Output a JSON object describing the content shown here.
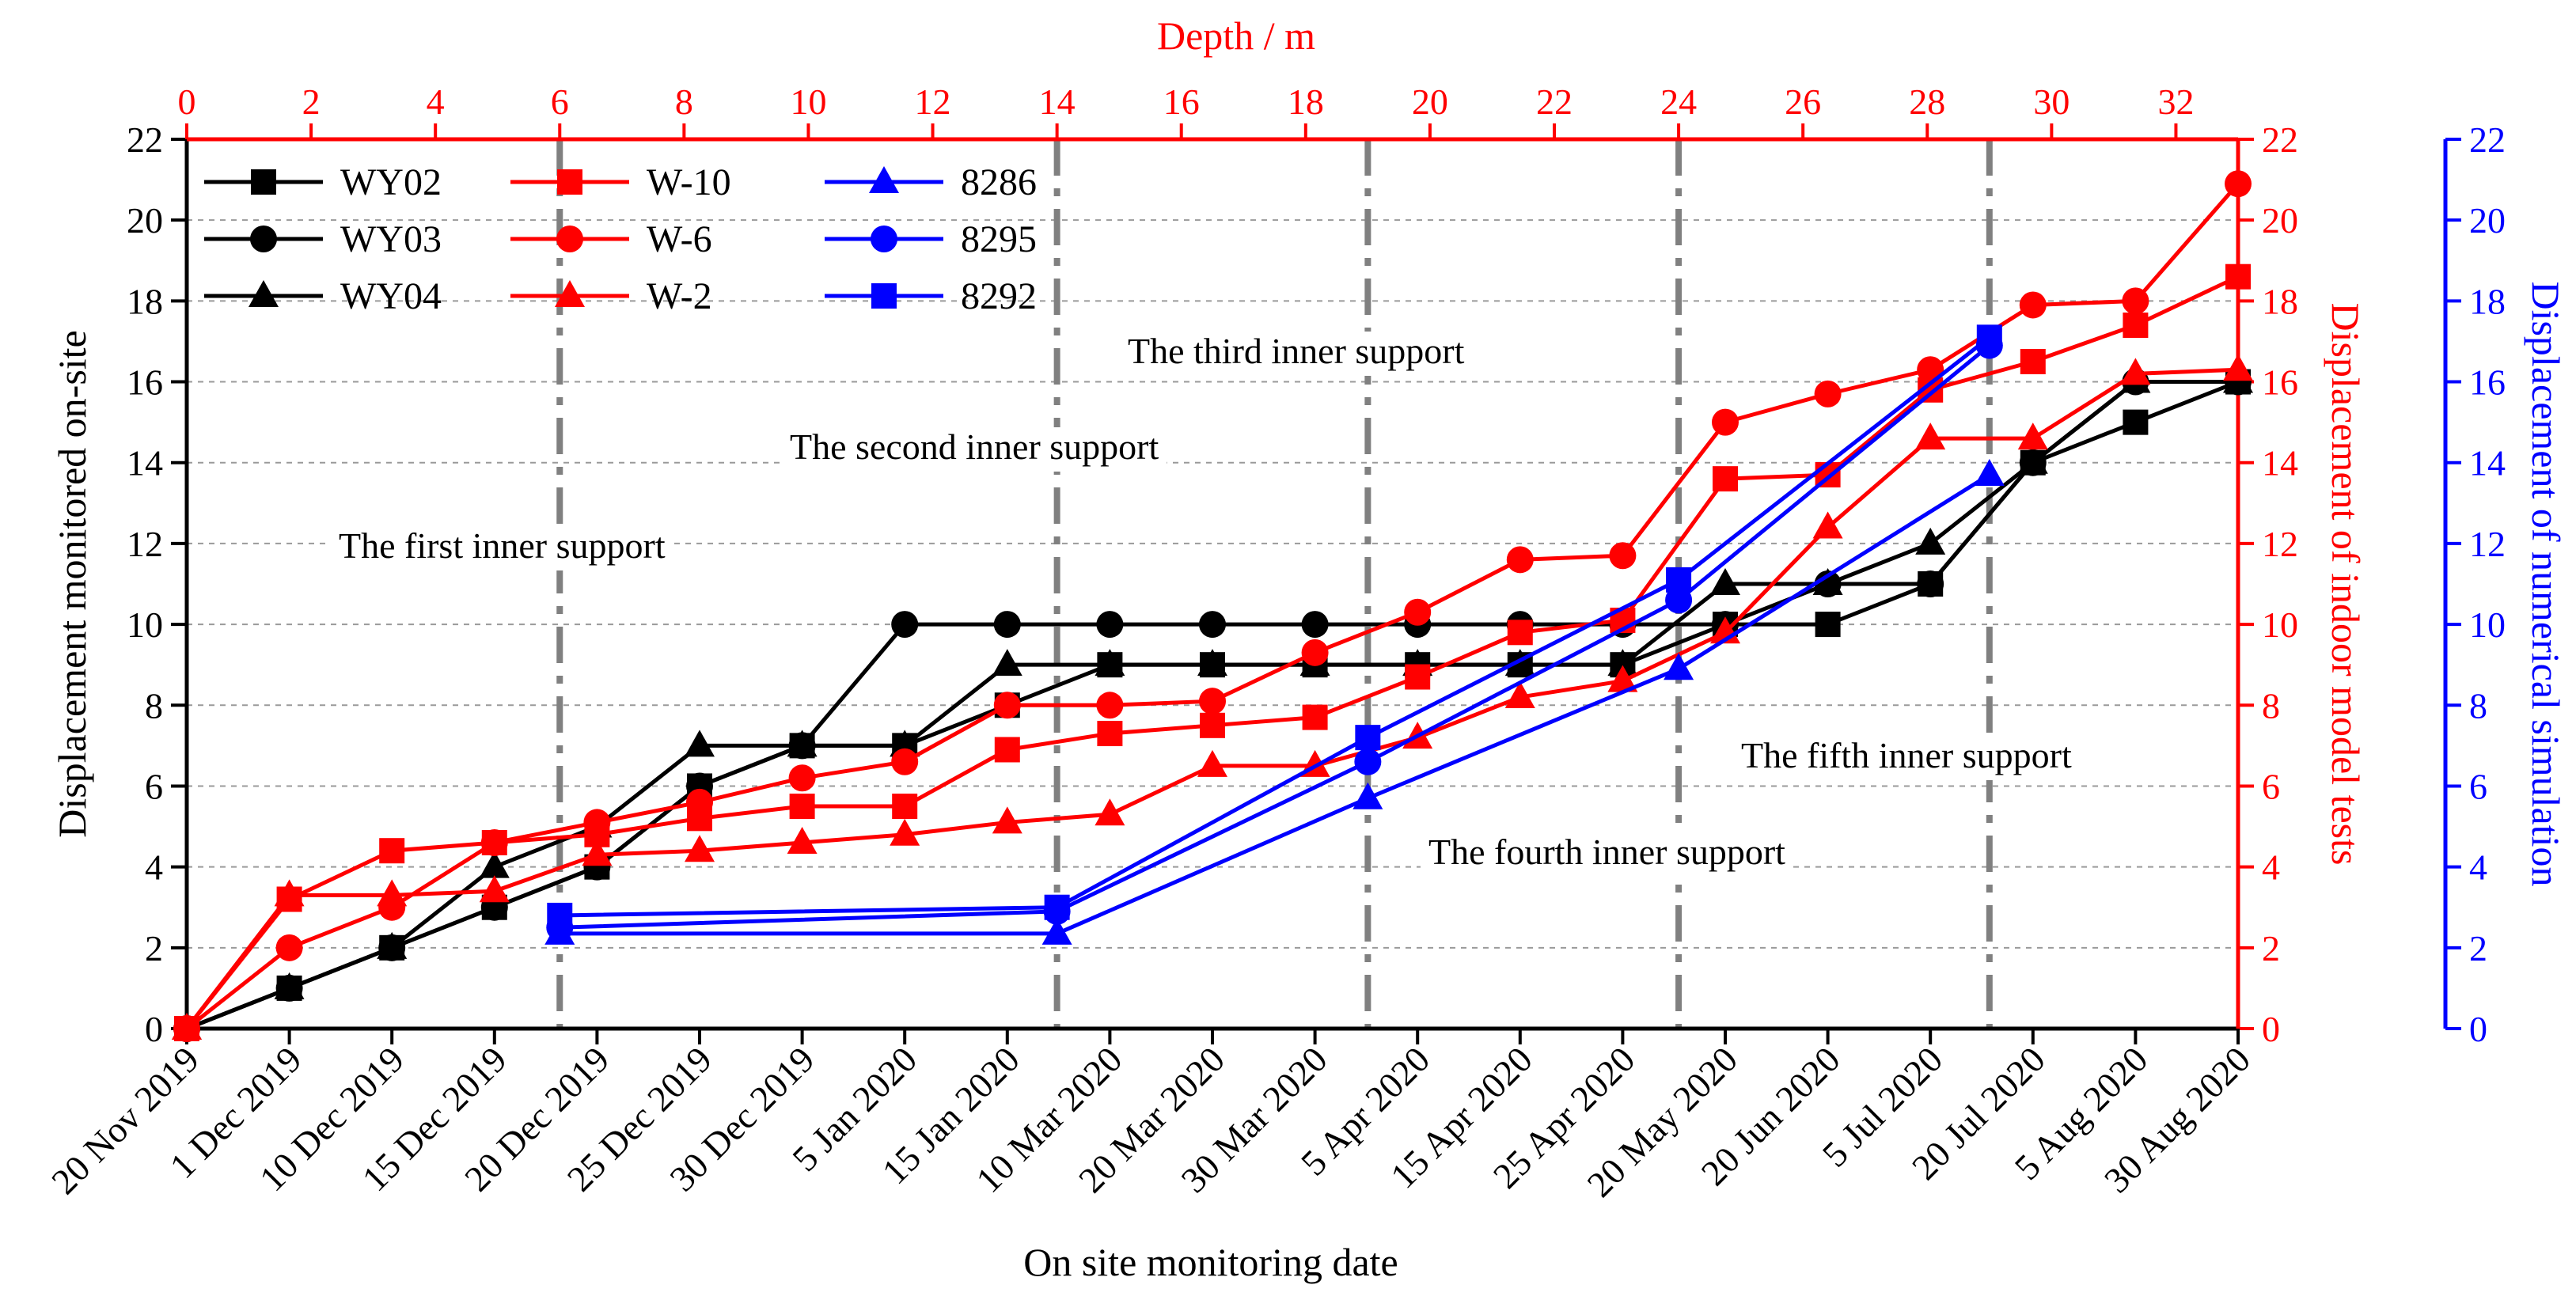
{
  "chart_data": {
    "type": "line",
    "x_bottom": {
      "label": "On site monitoring date",
      "categories": [
        "20 Nov 2019",
        "1 Dec 2019",
        "10 Dec 2019",
        "15 Dec 2019",
        "20 Dec 2019",
        "25 Dec 2019",
        "30 Dec 2019",
        "5 Jan 2020",
        "15 Jan 2020",
        "10 Mar 2020",
        "20 Mar 2020",
        "30 Mar 2020",
        "5 Apr 2020",
        "15 Apr 2020",
        "25 Apr 2020",
        "20 May 2020",
        "20 Jun 2020",
        "5 Jul 2020",
        "20 Jul 2020",
        "5 Aug 2020",
        "30 Aug 2020"
      ]
    },
    "x_top": {
      "label": "Depth / m",
      "ticks": [
        0,
        2,
        4,
        6,
        8,
        10,
        12,
        14,
        16,
        18,
        20,
        22,
        24,
        26,
        28,
        30,
        32
      ],
      "range": [
        0,
        33
      ],
      "color": "#ff0000"
    },
    "y_left": {
      "label": "Displacement monitored on-site",
      "ticks": [
        0,
        2,
        4,
        6,
        8,
        10,
        12,
        14,
        16,
        18,
        20,
        22
      ],
      "range": [
        0,
        22
      ],
      "color": "#000000"
    },
    "y_right1": {
      "label": "Displacement of indoor model tests",
      "ticks": [
        0,
        2,
        4,
        6,
        8,
        10,
        12,
        14,
        16,
        18,
        20,
        22
      ],
      "range": [
        0,
        22
      ],
      "color": "#ff0000"
    },
    "y_right2": {
      "label": "Displacement of numerical simulation",
      "ticks": [
        0,
        2,
        4,
        6,
        8,
        10,
        12,
        14,
        16,
        18,
        20,
        22
      ],
      "range": [
        0,
        22
      ],
      "color": "#0000ff"
    },
    "grid": "dashed horizontal",
    "support_lines": [
      {
        "depth": 6,
        "label": "The first inner support"
      },
      {
        "depth": 14,
        "label": "The second inner support"
      },
      {
        "depth": 19,
        "label": "The third inner support"
      },
      {
        "depth": 24,
        "label": "The fourth inner support"
      },
      {
        "depth": 29,
        "label": "The fifth inner support"
      }
    ],
    "series": [
      {
        "name": "WY02",
        "color": "#000000",
        "marker": "square",
        "axis": "bottom",
        "values": [
          0,
          1,
          2,
          3,
          4,
          6,
          7,
          7,
          8,
          9,
          9,
          9,
          9,
          9,
          9,
          10,
          10,
          11,
          14,
          15,
          16
        ]
      },
      {
        "name": "WY03",
        "color": "#000000",
        "marker": "circle",
        "axis": "bottom",
        "values": [
          0,
          1,
          2,
          3,
          4,
          6,
          7,
          10,
          10,
          10,
          10,
          10,
          10,
          10,
          10,
          10,
          11,
          11,
          14,
          16,
          16
        ]
      },
      {
        "name": "WY04",
        "color": "#000000",
        "marker": "triangle",
        "axis": "bottom",
        "values": [
          0,
          1,
          2,
          4,
          5,
          7,
          7,
          7,
          9,
          9,
          9,
          9,
          9,
          9,
          9,
          11,
          11,
          12,
          14,
          16,
          16
        ]
      },
      {
        "name": "W-10",
        "color": "#ff0000",
        "marker": "square",
        "axis": "bottom",
        "values": [
          0,
          3.2,
          4.4,
          4.6,
          4.8,
          5.2,
          5.5,
          5.5,
          6.9,
          7.3,
          7.5,
          7.7,
          8.7,
          9.8,
          10.1,
          13.6,
          13.7,
          15.8,
          16.5,
          17.4,
          18.6
        ]
      },
      {
        "name": "W-6",
        "color": "#ff0000",
        "marker": "circle",
        "axis": "bottom",
        "values": [
          0,
          2,
          3,
          4.6,
          5.1,
          5.6,
          6.2,
          6.6,
          8,
          8,
          8.1,
          9.3,
          10.3,
          11.6,
          11.7,
          15,
          15.7,
          16.3,
          17.9,
          18,
          20.9
        ]
      },
      {
        "name": "W-2",
        "color": "#ff0000",
        "marker": "triangle",
        "axis": "bottom",
        "values": [
          0,
          3.3,
          3.3,
          3.4,
          4.3,
          4.4,
          4.6,
          4.8,
          5.1,
          5.3,
          6.5,
          6.5,
          7.2,
          8.2,
          8.6,
          9.8,
          12.4,
          14.6,
          14.6,
          16.2,
          16.3
        ]
      },
      {
        "name": "8286",
        "color": "#0000ff",
        "marker": "triangle",
        "axis": "top",
        "points": [
          [
            6,
            2.35
          ],
          [
            14,
            2.35
          ],
          [
            19,
            5.7
          ],
          [
            24,
            8.9
          ],
          [
            29,
            13.7
          ]
        ]
      },
      {
        "name": "8295",
        "color": "#0000ff",
        "marker": "circle",
        "axis": "top",
        "points": [
          [
            6,
            2.5
          ],
          [
            14,
            2.9
          ],
          [
            19,
            6.6
          ],
          [
            24,
            10.6
          ],
          [
            29,
            16.9
          ]
        ]
      },
      {
        "name": "8292",
        "color": "#0000ff",
        "marker": "square",
        "axis": "top",
        "points": [
          [
            6,
            2.8
          ],
          [
            14,
            3
          ],
          [
            19,
            7.2
          ],
          [
            24,
            11.1
          ],
          [
            29,
            17.1
          ]
        ]
      }
    ],
    "legend": "top-left"
  }
}
